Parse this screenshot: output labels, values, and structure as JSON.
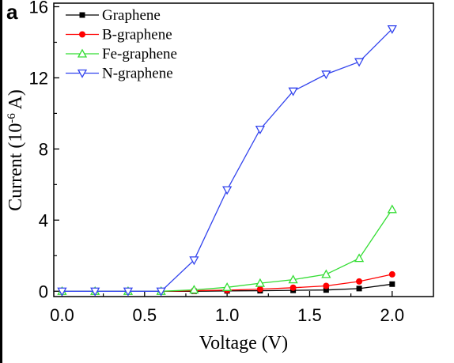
{
  "chart_data": {
    "type": "line",
    "panel_label": "a",
    "xlabel": "Voltage (V)",
    "ylabel": "Current (10",
    "ylabel_sup": "-6",
    "ylabel_tail": " A)",
    "xlim": [
      -0.05,
      2.25
    ],
    "ylim": [
      -0.3,
      16.2
    ],
    "xticks": [
      "0.0",
      "0.5",
      "1.0",
      "1.5",
      "2.0"
    ],
    "yticks": [
      "0",
      "4",
      "8",
      "12",
      "16"
    ],
    "grid": false,
    "legend_position": "top-left",
    "x": [
      0.0,
      0.2,
      0.4,
      0.6,
      0.8,
      1.0,
      1.2,
      1.4,
      1.6,
      1.8,
      2.0
    ],
    "series": [
      {
        "name": "Graphene",
        "color": "#000000",
        "marker": "square",
        "values": [
          0.0,
          0.0,
          0.0,
          0.0,
          0.0,
          0.02,
          0.03,
          0.05,
          0.07,
          0.15,
          0.4
        ]
      },
      {
        "name": "B-graphene",
        "color": "#ff0000",
        "marker": "circle",
        "values": [
          0.0,
          0.0,
          0.0,
          0.0,
          0.03,
          0.06,
          0.12,
          0.2,
          0.3,
          0.55,
          0.95
        ]
      },
      {
        "name": "Fe-graphene",
        "color": "#33dd33",
        "marker": "triangle-up",
        "values": [
          0.0,
          0.0,
          0.0,
          0.0,
          0.08,
          0.22,
          0.45,
          0.65,
          0.95,
          1.85,
          4.6
        ]
      },
      {
        "name": "N-graphene",
        "color": "#3344ee",
        "marker": "triangle-down",
        "values": [
          0.0,
          0.0,
          0.0,
          0.0,
          1.75,
          5.7,
          9.1,
          11.25,
          12.2,
          12.9,
          14.75
        ]
      }
    ]
  }
}
